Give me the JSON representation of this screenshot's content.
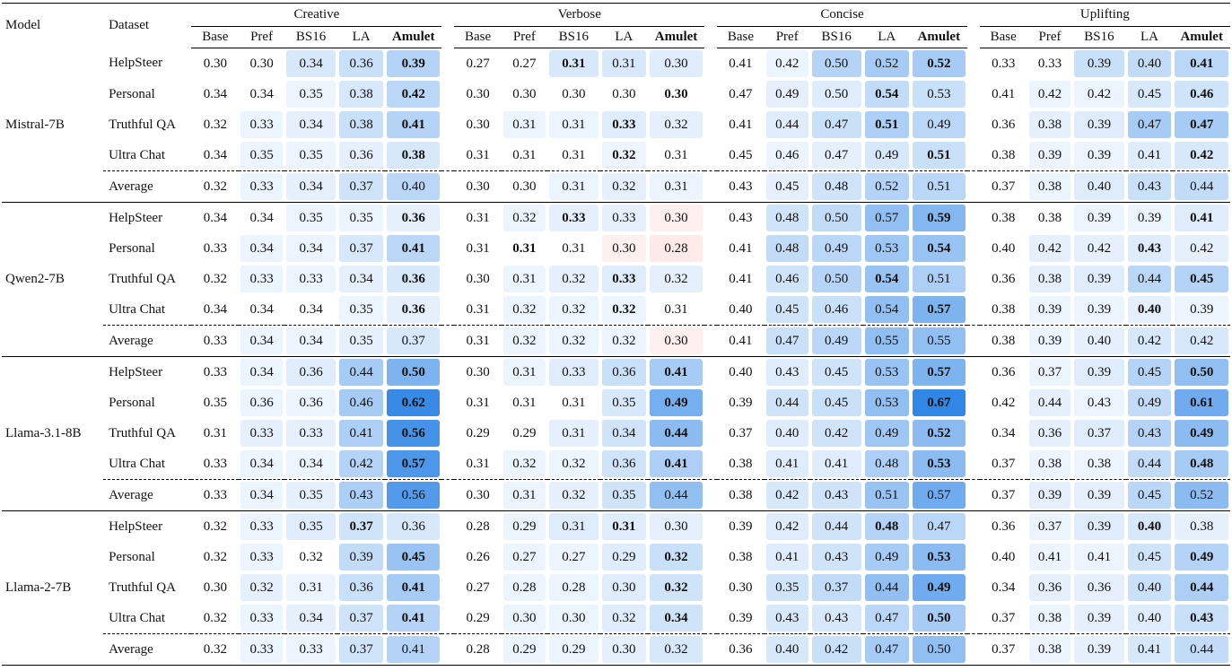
{
  "table": {
    "col_model": "Model",
    "col_dataset": "Dataset",
    "groups": [
      "Creative",
      "Verbose",
      "Concise",
      "Uplifting"
    ],
    "methods": [
      "Base",
      "Pref",
      "BS16",
      "LA",
      "Amulet"
    ],
    "shading": {
      "low_color": "#ffe9e9",
      "high_color": "#2f86e6",
      "reference": "Base"
    },
    "blocks": [
      {
        "model": "Mistral-7B",
        "rows": [
          {
            "dataset": "HelpSteer",
            "values": [
              [
                0.3,
                0.3,
                0.34,
                0.36,
                0.39
              ],
              [
                0.27,
                0.27,
                0.31,
                0.31,
                0.3
              ],
              [
                0.41,
                0.42,
                0.5,
                0.52,
                0.52
              ],
              [
                0.33,
                0.33,
                0.39,
                0.4,
                0.41
              ]
            ],
            "bold": [
              4,
              2,
              4,
              4
            ]
          },
          {
            "dataset": "Personal",
            "values": [
              [
                0.34,
                0.34,
                0.35,
                0.38,
                0.42
              ],
              [
                0.3,
                0.3,
                0.3,
                0.3,
                0.3
              ],
              [
                0.47,
                0.49,
                0.5,
                0.54,
                0.53
              ],
              [
                0.41,
                0.42,
                0.42,
                0.45,
                0.46
              ]
            ],
            "bold": [
              4,
              4,
              3,
              4
            ]
          },
          {
            "dataset": "Truthful QA",
            "values": [
              [
                0.32,
                0.33,
                0.34,
                0.38,
                0.41
              ],
              [
                0.3,
                0.31,
                0.31,
                0.33,
                0.32
              ],
              [
                0.41,
                0.44,
                0.47,
                0.51,
                0.49
              ],
              [
                0.36,
                0.38,
                0.39,
                0.47,
                0.47
              ]
            ],
            "bold": [
              4,
              3,
              3,
              4
            ]
          },
          {
            "dataset": "Ultra Chat",
            "values": [
              [
                0.34,
                0.35,
                0.35,
                0.36,
                0.38
              ],
              [
                0.31,
                0.31,
                0.31,
                0.32,
                0.31
              ],
              [
                0.45,
                0.46,
                0.47,
                0.49,
                0.51
              ],
              [
                0.38,
                0.39,
                0.39,
                0.41,
                0.42
              ]
            ],
            "bold": [
              4,
              3,
              4,
              4
            ]
          },
          {
            "dataset": "Average",
            "values": [
              [
                0.32,
                0.33,
                0.34,
                0.37,
                0.4
              ],
              [
                0.3,
                0.3,
                0.31,
                0.32,
                0.31
              ],
              [
                0.43,
                0.45,
                0.48,
                0.52,
                0.51
              ],
              [
                0.37,
                0.38,
                0.4,
                0.43,
                0.44
              ]
            ],
            "bold": [
              -1,
              -1,
              -1,
              -1
            ]
          }
        ]
      },
      {
        "model": "Qwen2-7B",
        "rows": [
          {
            "dataset": "HelpSteer",
            "values": [
              [
                0.34,
                0.34,
                0.35,
                0.35,
                0.36
              ],
              [
                0.31,
                0.32,
                0.33,
                0.33,
                0.3
              ],
              [
                0.43,
                0.48,
                0.5,
                0.57,
                0.59
              ],
              [
                0.38,
                0.38,
                0.39,
                0.39,
                0.41
              ]
            ],
            "bold": [
              4,
              2,
              4,
              4
            ]
          },
          {
            "dataset": "Personal",
            "values": [
              [
                0.33,
                0.34,
                0.34,
                0.37,
                0.41
              ],
              [
                0.31,
                0.31,
                0.31,
                0.3,
                0.28
              ],
              [
                0.41,
                0.48,
                0.49,
                0.53,
                0.54
              ],
              [
                0.4,
                0.42,
                0.42,
                0.43,
                0.42
              ]
            ],
            "bold": [
              4,
              1,
              4,
              3
            ]
          },
          {
            "dataset": "Truthful QA",
            "values": [
              [
                0.32,
                0.33,
                0.33,
                0.34,
                0.36
              ],
              [
                0.3,
                0.31,
                0.32,
                0.33,
                0.32
              ],
              [
                0.41,
                0.46,
                0.5,
                0.54,
                0.51
              ],
              [
                0.36,
                0.38,
                0.39,
                0.44,
                0.45
              ]
            ],
            "bold": [
              4,
              3,
              3,
              4
            ]
          },
          {
            "dataset": "Ultra Chat",
            "values": [
              [
                0.34,
                0.34,
                0.34,
                0.35,
                0.36
              ],
              [
                0.31,
                0.32,
                0.32,
                0.32,
                0.31
              ],
              [
                0.4,
                0.45,
                0.46,
                0.54,
                0.57
              ],
              [
                0.38,
                0.39,
                0.39,
                0.4,
                0.39
              ]
            ],
            "bold": [
              4,
              3,
              4,
              3
            ]
          },
          {
            "dataset": "Average",
            "values": [
              [
                0.33,
                0.34,
                0.34,
                0.35,
                0.37
              ],
              [
                0.31,
                0.32,
                0.32,
                0.32,
                0.3
              ],
              [
                0.41,
                0.47,
                0.49,
                0.55,
                0.55
              ],
              [
                0.38,
                0.39,
                0.4,
                0.42,
                0.42
              ]
            ],
            "bold": [
              -1,
              -1,
              -1,
              -1
            ]
          }
        ]
      },
      {
        "model": "Llama-3.1-8B",
        "rows": [
          {
            "dataset": "HelpSteer",
            "values": [
              [
                0.33,
                0.34,
                0.36,
                0.44,
                0.5
              ],
              [
                0.3,
                0.31,
                0.33,
                0.36,
                0.41
              ],
              [
                0.4,
                0.43,
                0.45,
                0.53,
                0.57
              ],
              [
                0.36,
                0.37,
                0.39,
                0.45,
                0.5
              ]
            ],
            "bold": [
              4,
              4,
              4,
              4
            ]
          },
          {
            "dataset": "Personal",
            "values": [
              [
                0.35,
                0.36,
                0.36,
                0.46,
                0.62
              ],
              [
                0.31,
                0.31,
                0.31,
                0.35,
                0.49
              ],
              [
                0.39,
                0.44,
                0.45,
                0.53,
                0.67
              ],
              [
                0.42,
                0.44,
                0.43,
                0.49,
                0.61
              ]
            ],
            "bold": [
              4,
              4,
              4,
              4
            ]
          },
          {
            "dataset": "Truthful QA",
            "values": [
              [
                0.31,
                0.33,
                0.33,
                0.41,
                0.56
              ],
              [
                0.29,
                0.29,
                0.31,
                0.34,
                0.44
              ],
              [
                0.37,
                0.4,
                0.42,
                0.49,
                0.52
              ],
              [
                0.34,
                0.36,
                0.37,
                0.43,
                0.49
              ]
            ],
            "bold": [
              4,
              4,
              4,
              4
            ]
          },
          {
            "dataset": "Ultra Chat",
            "values": [
              [
                0.33,
                0.34,
                0.34,
                0.42,
                0.57
              ],
              [
                0.31,
                0.32,
                0.32,
                0.36,
                0.41
              ],
              [
                0.38,
                0.41,
                0.41,
                0.48,
                0.53
              ],
              [
                0.37,
                0.38,
                0.38,
                0.44,
                0.48
              ]
            ],
            "bold": [
              4,
              4,
              4,
              4
            ]
          },
          {
            "dataset": "Average",
            "values": [
              [
                0.33,
                0.34,
                0.35,
                0.43,
                0.56
              ],
              [
                0.3,
                0.31,
                0.32,
                0.35,
                0.44
              ],
              [
                0.38,
                0.42,
                0.43,
                0.51,
                0.57
              ],
              [
                0.37,
                0.39,
                0.39,
                0.45,
                0.52
              ]
            ],
            "bold": [
              -1,
              -1,
              -1,
              -1
            ]
          }
        ]
      },
      {
        "model": "Llama-2-7B",
        "rows": [
          {
            "dataset": "HelpSteer",
            "values": [
              [
                0.32,
                0.33,
                0.35,
                0.37,
                0.36
              ],
              [
                0.28,
                0.29,
                0.31,
                0.31,
                0.3
              ],
              [
                0.39,
                0.42,
                0.44,
                0.48,
                0.47
              ],
              [
                0.36,
                0.37,
                0.39,
                0.4,
                0.38
              ]
            ],
            "bold": [
              3,
              3,
              3,
              3
            ]
          },
          {
            "dataset": "Personal",
            "values": [
              [
                0.32,
                0.33,
                0.32,
                0.39,
                0.45
              ],
              [
                0.26,
                0.27,
                0.27,
                0.29,
                0.32
              ],
              [
                0.38,
                0.41,
                0.43,
                0.49,
                0.53
              ],
              [
                0.4,
                0.41,
                0.41,
                0.45,
                0.49
              ]
            ],
            "bold": [
              4,
              4,
              4,
              4
            ]
          },
          {
            "dataset": "Truthful QA",
            "values": [
              [
                0.3,
                0.32,
                0.31,
                0.36,
                0.41
              ],
              [
                0.27,
                0.28,
                0.28,
                0.3,
                0.32
              ],
              [
                0.3,
                0.35,
                0.37,
                0.44,
                0.49
              ],
              [
                0.34,
                0.36,
                0.36,
                0.4,
                0.44
              ]
            ],
            "bold": [
              4,
              4,
              4,
              4
            ]
          },
          {
            "dataset": "Ultra Chat",
            "values": [
              [
                0.32,
                0.33,
                0.34,
                0.37,
                0.41
              ],
              [
                0.29,
                0.3,
                0.3,
                0.32,
                0.34
              ],
              [
                0.39,
                0.43,
                0.43,
                0.47,
                0.5
              ],
              [
                0.37,
                0.38,
                0.39,
                0.4,
                0.43
              ]
            ],
            "bold": [
              4,
              4,
              4,
              4
            ]
          },
          {
            "dataset": "Average",
            "values": [
              [
                0.32,
                0.33,
                0.33,
                0.37,
                0.41
              ],
              [
                0.28,
                0.29,
                0.29,
                0.3,
                0.32
              ],
              [
                0.36,
                0.4,
                0.42,
                0.47,
                0.5
              ],
              [
                0.37,
                0.38,
                0.39,
                0.41,
                0.44
              ]
            ],
            "bold": [
              -1,
              -1,
              -1,
              -1
            ]
          }
        ]
      }
    ]
  }
}
